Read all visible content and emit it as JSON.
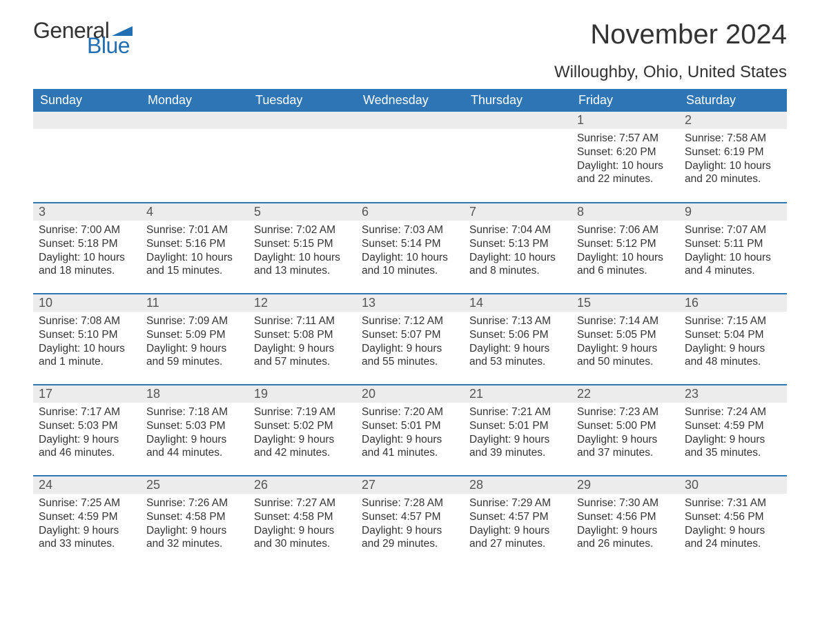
{
  "logo": {
    "text_general": "General",
    "text_blue": "Blue",
    "flag_color": "#1f6fb2"
  },
  "header": {
    "month_title": "November 2024",
    "location": "Willoughby, Ohio, United States"
  },
  "colors": {
    "header_bg": "#2e75b6",
    "header_text": "#ffffff",
    "daynum_bg": "#ececec",
    "row_border": "#2e75b6",
    "body_text": "#333333"
  },
  "calendar": {
    "weekdays": [
      "Sunday",
      "Monday",
      "Tuesday",
      "Wednesday",
      "Thursday",
      "Friday",
      "Saturday"
    ],
    "weeks": [
      [
        null,
        null,
        null,
        null,
        null,
        {
          "day": "1",
          "sunrise": "Sunrise: 7:57 AM",
          "sunset": "Sunset: 6:20 PM",
          "daylight": "Daylight: 10 hours and 22 minutes."
        },
        {
          "day": "2",
          "sunrise": "Sunrise: 7:58 AM",
          "sunset": "Sunset: 6:19 PM",
          "daylight": "Daylight: 10 hours and 20 minutes."
        }
      ],
      [
        {
          "day": "3",
          "sunrise": "Sunrise: 7:00 AM",
          "sunset": "Sunset: 5:18 PM",
          "daylight": "Daylight: 10 hours and 18 minutes."
        },
        {
          "day": "4",
          "sunrise": "Sunrise: 7:01 AM",
          "sunset": "Sunset: 5:16 PM",
          "daylight": "Daylight: 10 hours and 15 minutes."
        },
        {
          "day": "5",
          "sunrise": "Sunrise: 7:02 AM",
          "sunset": "Sunset: 5:15 PM",
          "daylight": "Daylight: 10 hours and 13 minutes."
        },
        {
          "day": "6",
          "sunrise": "Sunrise: 7:03 AM",
          "sunset": "Sunset: 5:14 PM",
          "daylight": "Daylight: 10 hours and 10 minutes."
        },
        {
          "day": "7",
          "sunrise": "Sunrise: 7:04 AM",
          "sunset": "Sunset: 5:13 PM",
          "daylight": "Daylight: 10 hours and 8 minutes."
        },
        {
          "day": "8",
          "sunrise": "Sunrise: 7:06 AM",
          "sunset": "Sunset: 5:12 PM",
          "daylight": "Daylight: 10 hours and 6 minutes."
        },
        {
          "day": "9",
          "sunrise": "Sunrise: 7:07 AM",
          "sunset": "Sunset: 5:11 PM",
          "daylight": "Daylight: 10 hours and 4 minutes."
        }
      ],
      [
        {
          "day": "10",
          "sunrise": "Sunrise: 7:08 AM",
          "sunset": "Sunset: 5:10 PM",
          "daylight": "Daylight: 10 hours and 1 minute."
        },
        {
          "day": "11",
          "sunrise": "Sunrise: 7:09 AM",
          "sunset": "Sunset: 5:09 PM",
          "daylight": "Daylight: 9 hours and 59 minutes."
        },
        {
          "day": "12",
          "sunrise": "Sunrise: 7:11 AM",
          "sunset": "Sunset: 5:08 PM",
          "daylight": "Daylight: 9 hours and 57 minutes."
        },
        {
          "day": "13",
          "sunrise": "Sunrise: 7:12 AM",
          "sunset": "Sunset: 5:07 PM",
          "daylight": "Daylight: 9 hours and 55 minutes."
        },
        {
          "day": "14",
          "sunrise": "Sunrise: 7:13 AM",
          "sunset": "Sunset: 5:06 PM",
          "daylight": "Daylight: 9 hours and 53 minutes."
        },
        {
          "day": "15",
          "sunrise": "Sunrise: 7:14 AM",
          "sunset": "Sunset: 5:05 PM",
          "daylight": "Daylight: 9 hours and 50 minutes."
        },
        {
          "day": "16",
          "sunrise": "Sunrise: 7:15 AM",
          "sunset": "Sunset: 5:04 PM",
          "daylight": "Daylight: 9 hours and 48 minutes."
        }
      ],
      [
        {
          "day": "17",
          "sunrise": "Sunrise: 7:17 AM",
          "sunset": "Sunset: 5:03 PM",
          "daylight": "Daylight: 9 hours and 46 minutes."
        },
        {
          "day": "18",
          "sunrise": "Sunrise: 7:18 AM",
          "sunset": "Sunset: 5:03 PM",
          "daylight": "Daylight: 9 hours and 44 minutes."
        },
        {
          "day": "19",
          "sunrise": "Sunrise: 7:19 AM",
          "sunset": "Sunset: 5:02 PM",
          "daylight": "Daylight: 9 hours and 42 minutes."
        },
        {
          "day": "20",
          "sunrise": "Sunrise: 7:20 AM",
          "sunset": "Sunset: 5:01 PM",
          "daylight": "Daylight: 9 hours and 41 minutes."
        },
        {
          "day": "21",
          "sunrise": "Sunrise: 7:21 AM",
          "sunset": "Sunset: 5:01 PM",
          "daylight": "Daylight: 9 hours and 39 minutes."
        },
        {
          "day": "22",
          "sunrise": "Sunrise: 7:23 AM",
          "sunset": "Sunset: 5:00 PM",
          "daylight": "Daylight: 9 hours and 37 minutes."
        },
        {
          "day": "23",
          "sunrise": "Sunrise: 7:24 AM",
          "sunset": "Sunset: 4:59 PM",
          "daylight": "Daylight: 9 hours and 35 minutes."
        }
      ],
      [
        {
          "day": "24",
          "sunrise": "Sunrise: 7:25 AM",
          "sunset": "Sunset: 4:59 PM",
          "daylight": "Daylight: 9 hours and 33 minutes."
        },
        {
          "day": "25",
          "sunrise": "Sunrise: 7:26 AM",
          "sunset": "Sunset: 4:58 PM",
          "daylight": "Daylight: 9 hours and 32 minutes."
        },
        {
          "day": "26",
          "sunrise": "Sunrise: 7:27 AM",
          "sunset": "Sunset: 4:58 PM",
          "daylight": "Daylight: 9 hours and 30 minutes."
        },
        {
          "day": "27",
          "sunrise": "Sunrise: 7:28 AM",
          "sunset": "Sunset: 4:57 PM",
          "daylight": "Daylight: 9 hours and 29 minutes."
        },
        {
          "day": "28",
          "sunrise": "Sunrise: 7:29 AM",
          "sunset": "Sunset: 4:57 PM",
          "daylight": "Daylight: 9 hours and 27 minutes."
        },
        {
          "day": "29",
          "sunrise": "Sunrise: 7:30 AM",
          "sunset": "Sunset: 4:56 PM",
          "daylight": "Daylight: 9 hours and 26 minutes."
        },
        {
          "day": "30",
          "sunrise": "Sunrise: 7:31 AM",
          "sunset": "Sunset: 4:56 PM",
          "daylight": "Daylight: 9 hours and 24 minutes."
        }
      ]
    ]
  }
}
